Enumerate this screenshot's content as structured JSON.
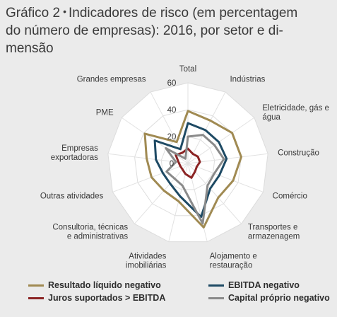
{
  "header": {
    "label": "Gráfico 2",
    "bullet": "•",
    "title_line1": "Indicadores de risco (em percentagem",
    "title_line2": "do número de empresas): 2016, por setor e di-",
    "title_line3": "mensão"
  },
  "chart_data": {
    "type": "radar",
    "axes": [
      [
        "Total"
      ],
      [
        "Indústrias"
      ],
      [
        "Eletricidade, gás e",
        "água"
      ],
      [
        "Construção"
      ],
      [
        "Comércio"
      ],
      [
        "Transportes e",
        "armazenagem"
      ],
      [
        "Alojamento e",
        "restauração"
      ],
      [
        "Atividades",
        "imobiliárias"
      ],
      [
        "Consultoria, técnicas",
        "e administrativas"
      ],
      [
        "Outras atividades"
      ],
      [
        "Empresas",
        "exportadoras"
      ],
      [
        "PME"
      ],
      [
        "Grandes empresas"
      ]
    ],
    "rlim": [
      0,
      60
    ],
    "ticks": [
      0,
      20,
      40,
      60
    ],
    "tick_labels": [
      "0",
      "20",
      "40",
      "60"
    ],
    "grid": true,
    "legend_position": "bottom",
    "series": [
      {
        "name": "Resultado líquido negativo",
        "color": "#a08a52",
        "values": [
          39,
          36,
          40,
          40,
          36,
          34,
          49,
          29,
          27,
          29,
          31,
          39,
          18
        ]
      },
      {
        "name": "EBITDA negativo",
        "color": "#1e4a64",
        "values": [
          30,
          28,
          28,
          29,
          25,
          25,
          41,
          25,
          20,
          20,
          24,
          30,
          12
        ]
      },
      {
        "name": "Juros suportados > EBITDA",
        "color": "#8b2424",
        "values": [
          11,
          8,
          9,
          9,
          7,
          8,
          11,
          8,
          6,
          6,
          7,
          11,
          9
        ]
      },
      {
        "name": "Capital próprio negativo",
        "color": "#8a8a8a",
        "values": [
          20,
          24,
          24,
          27,
          21,
          22,
          46,
          17,
          15,
          17,
          9,
          20,
          4
        ]
      }
    ]
  }
}
